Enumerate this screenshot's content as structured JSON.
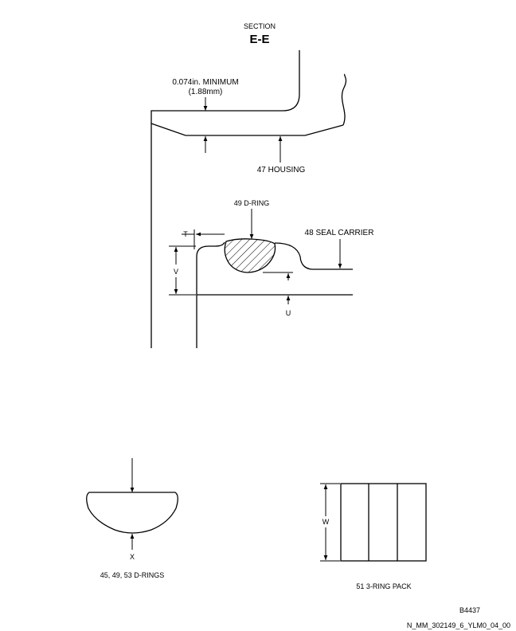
{
  "section": {
    "heading": "SECTION",
    "name": "E-E"
  },
  "labels": {
    "min_thickness_line1": "0.074in. MINIMUM",
    "min_thickness_line2": "(1.88mm)",
    "housing": "47 HOUSING",
    "d_ring": "49 D-RING",
    "seal_carrier": "48 SEAL CARRIER",
    "dim_t": "T",
    "dim_v": "V",
    "dim_u": "U",
    "dim_x": "X",
    "dim_w": "W",
    "d_rings_caption": "45, 49, 53 D-RINGS",
    "ring_pack_caption": "51 3-RING PACK"
  },
  "footer": {
    "figure_code": "B4437",
    "drawing_id": "N_MM_302149_6_YLM0_04_00"
  }
}
